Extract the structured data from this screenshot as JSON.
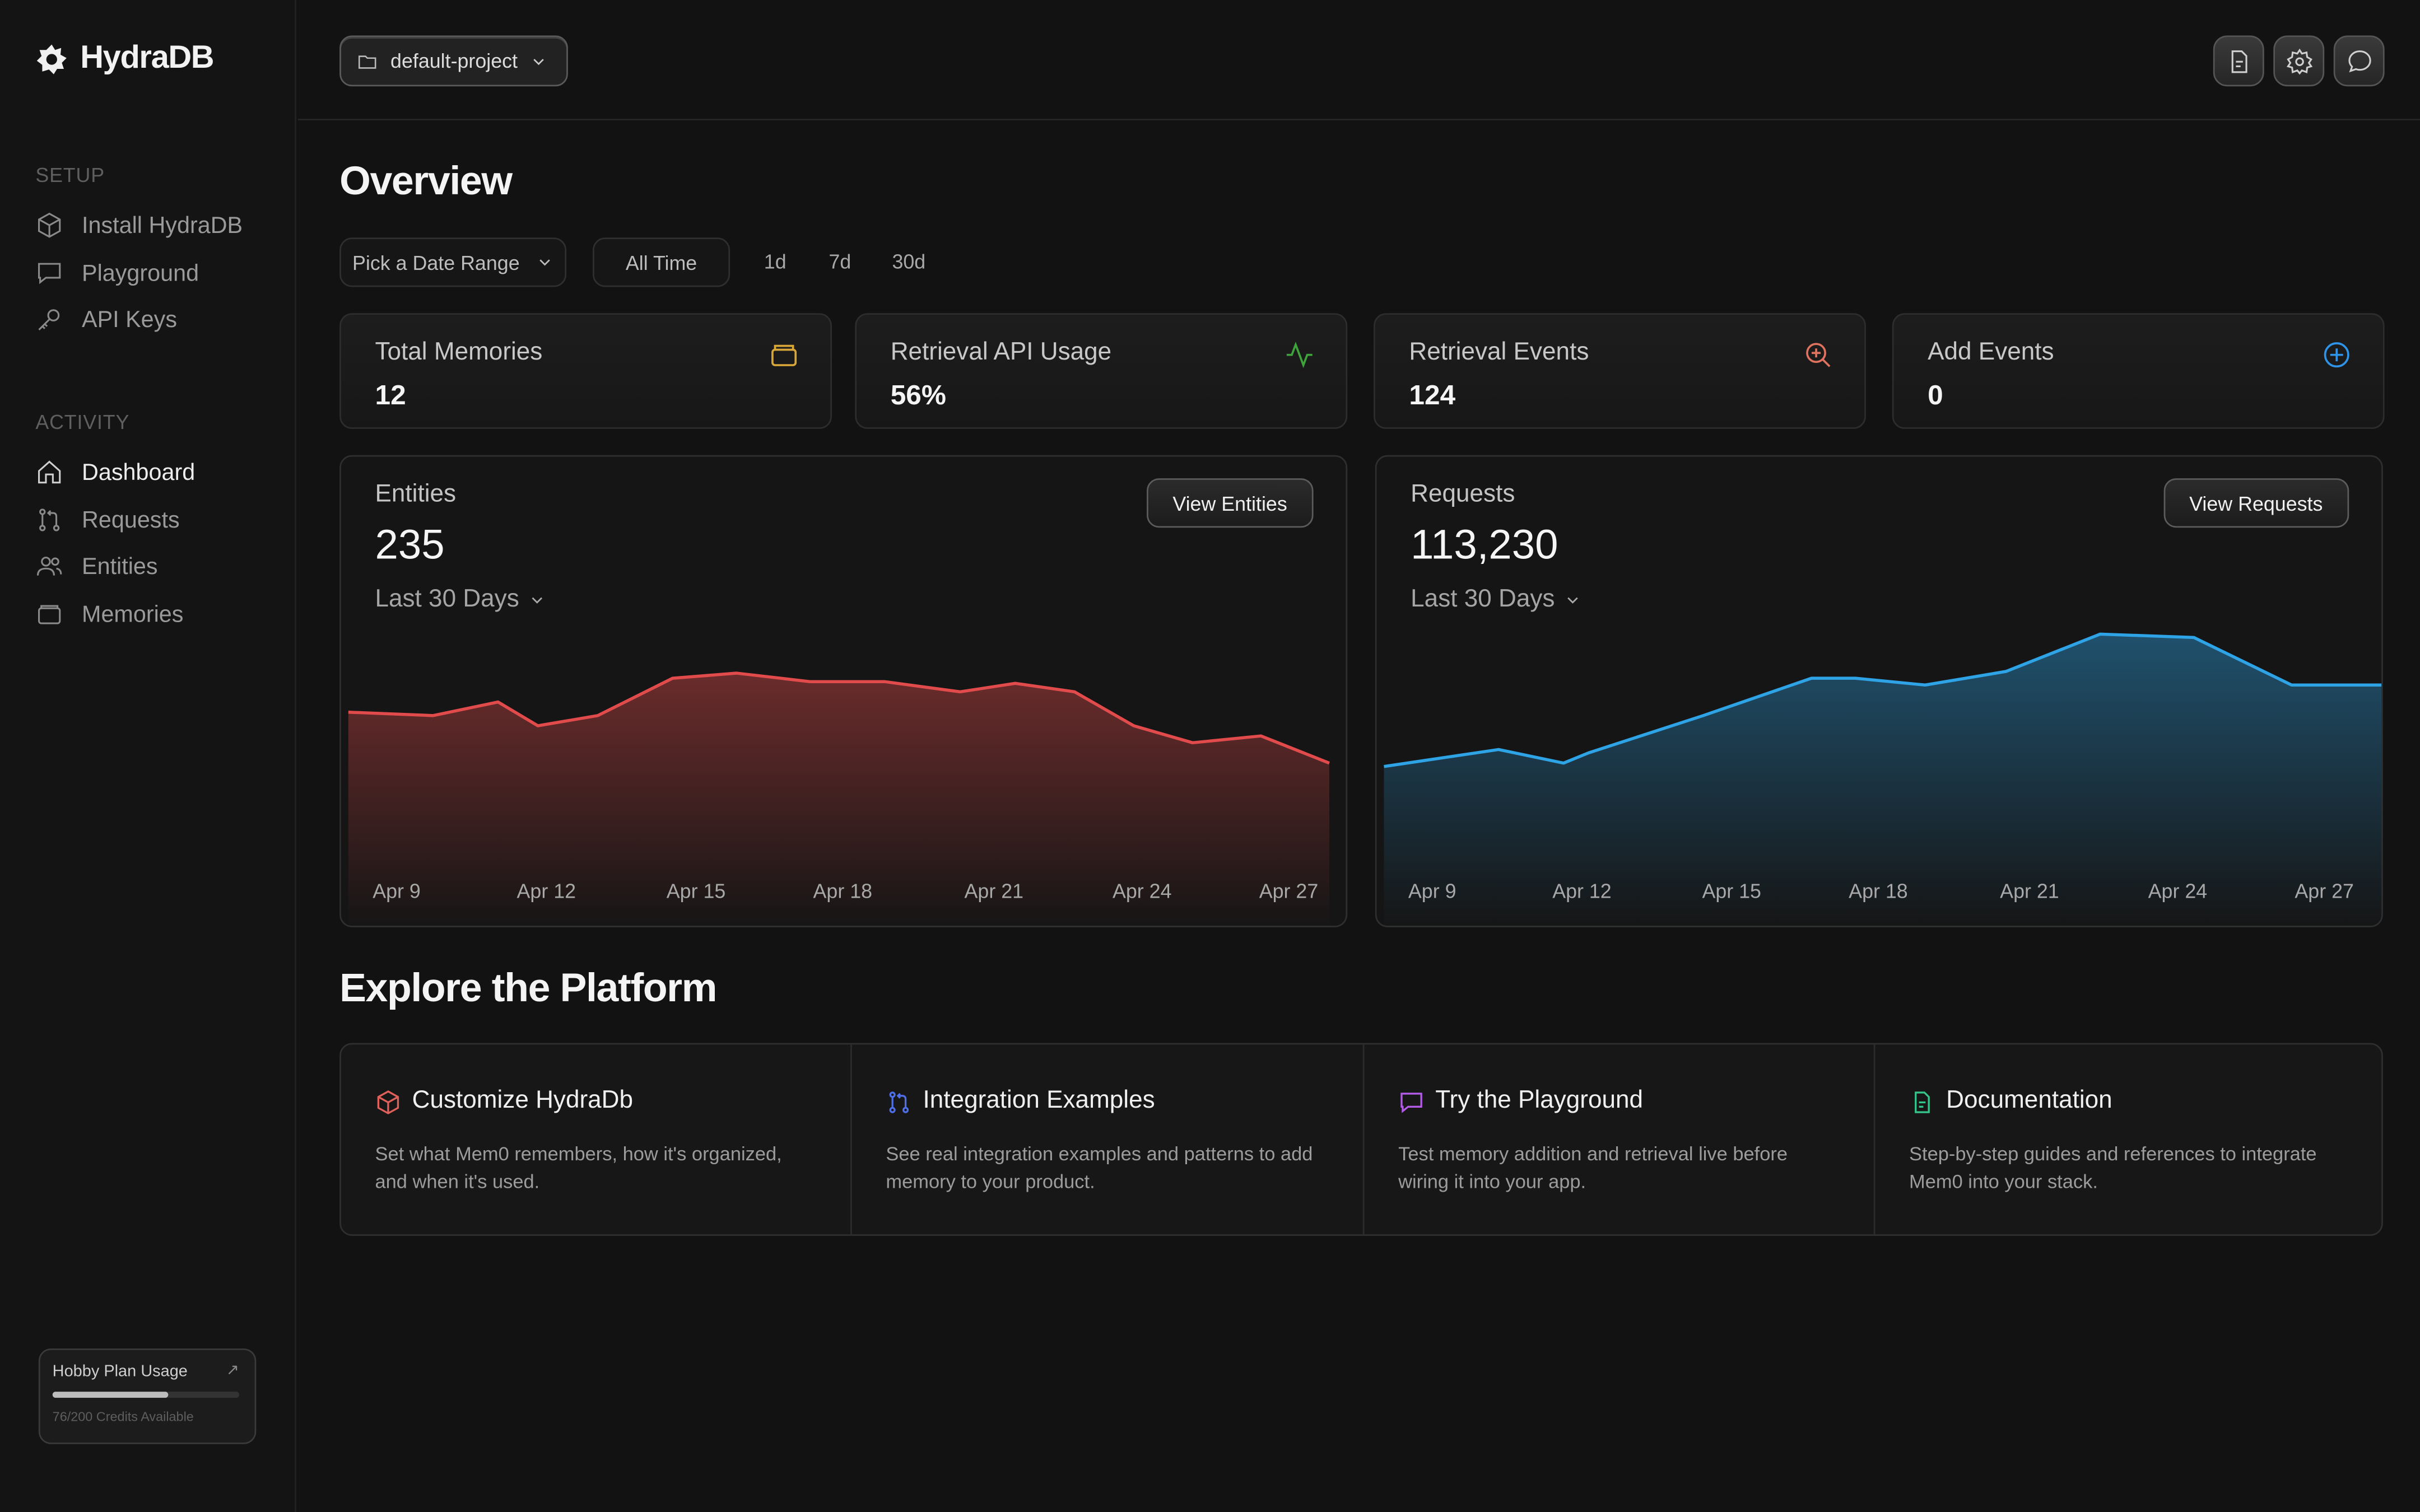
{
  "brand": {
    "name": "HydraDB"
  },
  "sidebar": {
    "setup_label": "SETUP",
    "setup_items": [
      {
        "label": "Install HydraDB",
        "icon": "cube-icon"
      },
      {
        "label": "Playground",
        "icon": "chat-icon"
      },
      {
        "label": "API Keys",
        "icon": "key-icon"
      }
    ],
    "activity_label": "ACTIVITY",
    "activity_items": [
      {
        "label": "Dashboard",
        "icon": "home-icon",
        "active": true
      },
      {
        "label": "Requests",
        "icon": "git-pull-icon"
      },
      {
        "label": "Entities",
        "icon": "users-icon"
      },
      {
        "label": "Memories",
        "icon": "folder-icon"
      }
    ],
    "plan": {
      "title": "Hobby Plan Usage",
      "arrow": "↗",
      "credits_text": "76/200 Credits Available",
      "used_fraction": 0.62
    }
  },
  "topbar": {
    "project": "default-project",
    "icons": [
      "document-icon",
      "settings-icon",
      "chat-bubble-icon"
    ]
  },
  "overview": {
    "title": "Overview",
    "date_range_label": "Pick a Date Range",
    "all_time_label": "All Time",
    "ranges": [
      "1d",
      "7d",
      "30d"
    ]
  },
  "stats": [
    {
      "title": "Total Memories",
      "value": "12",
      "icon": "folder-icon",
      "color": "#d9a63a"
    },
    {
      "title": "Retrieval API Usage",
      "value": "56%",
      "icon": "activity-icon",
      "color": "#3ea53a"
    },
    {
      "title": "Retrieval Events",
      "value": "124",
      "icon": "search-plus-icon",
      "color": "#e0735f"
    },
    {
      "title": "Add Events",
      "value": "0",
      "icon": "plus-circle-icon",
      "color": "#2f93e8"
    }
  ],
  "entities_card": {
    "title": "Entities",
    "value": "235",
    "range_label": "Last 30 Days",
    "button": "View Entities"
  },
  "requests_card": {
    "title": "Requests",
    "value": "113,230",
    "range_label": "Last 30 Days",
    "button": "View Requests"
  },
  "chart_data": [
    {
      "type": "area",
      "title": "Entities",
      "color": "#e24b4b",
      "tick_labels": [
        "Apr 9",
        "Apr 12",
        "Apr 15",
        "Apr 18",
        "Apr 21",
        "Apr 24",
        "Apr 27"
      ],
      "x": [
        8,
        9.7,
        11,
        11.8,
        13,
        14.5,
        15.8,
        17.3,
        18.8,
        20.3,
        21.4,
        22.6,
        23.8,
        25,
        26.4,
        27.8
      ],
      "values": [
        52,
        51,
        55,
        48,
        51,
        62,
        63.5,
        61,
        61,
        58,
        60.5,
        58,
        48,
        43,
        45,
        37
      ]
    },
    {
      "type": "area",
      "title": "Requests",
      "color": "#2ea3e6",
      "tick_labels": [
        "Apr 9",
        "Apr 12",
        "Apr 15",
        "Apr 18",
        "Apr 21",
        "Apr 24",
        "Apr 27"
      ],
      "x": [
        8,
        10.3,
        11.6,
        12.1,
        14.4,
        16.6,
        17.5,
        18.9,
        20.5,
        22.4,
        24.3,
        26.3,
        28.2,
        28.6
      ],
      "values": [
        36,
        41,
        37,
        40,
        51,
        62,
        62,
        60,
        64,
        75,
        74,
        60,
        60,
        60
      ]
    }
  ],
  "explore": {
    "title": "Explore the Platform",
    "cards": [
      {
        "title": "Customize HydraDb",
        "desc": "Set what Mem0 remembers, how it's organized, and when it's used.",
        "icon": "cube-icon",
        "color": "#e0605a"
      },
      {
        "title": "Integration Examples",
        "desc": "See real integration examples and patterns to add memory to your product.",
        "icon": "git-pull-icon",
        "color": "#4f6fe8"
      },
      {
        "title": "Try the Playground",
        "desc": "Test memory addition and retrieval live before wiring it into your app.",
        "icon": "chat-icon",
        "color": "#b45ce8"
      },
      {
        "title": "Documentation",
        "desc": "Step-by-step guides and references to integrate Mem0 into your stack.",
        "icon": "document-icon",
        "color": "#36c48a"
      }
    ]
  }
}
